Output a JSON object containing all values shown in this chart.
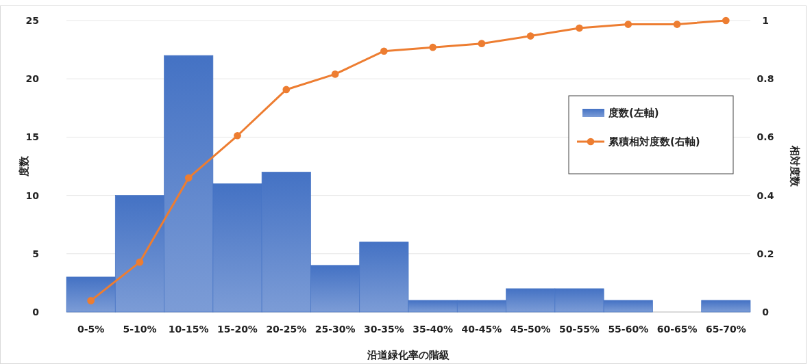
{
  "chart_data": {
    "type": "bar",
    "xlabel": "沿道緑化率の階級",
    "ylabel": "度数",
    "y2label": "相対度数",
    "categories": [
      "0-5%",
      "5-10%",
      "10-15%",
      "15-20%",
      "20-25%",
      "25-30%",
      "30-35%",
      "35-40%",
      "40-45%",
      "45-50%",
      "50-55%",
      "55-60%",
      "60-65%",
      "65-70%"
    ],
    "series": [
      {
        "name": "度数(左軸)",
        "color": "#4472c4",
        "values": [
          3,
          10,
          22,
          11,
          12,
          4,
          6,
          1,
          1,
          2,
          2,
          1,
          0,
          1
        ]
      },
      {
        "name": "累積相対度数(右軸)",
        "type": "line",
        "axis": "y2",
        "color": "#ed7d31",
        "values": [
          0.039,
          0.171,
          0.46,
          0.605,
          0.763,
          0.816,
          0.895,
          0.908,
          0.921,
          0.947,
          0.974,
          0.987,
          0.987,
          1
        ]
      }
    ],
    "ylim": [
      0,
      25
    ],
    "yticks": [
      0,
      5,
      10,
      15,
      20,
      25
    ],
    "y2lim": [
      0,
      1
    ],
    "y2ticks": [
      0,
      0.2,
      0.4,
      0.6,
      0.8,
      1
    ],
    "grid": "y",
    "legend": "right",
    "marker": "circle",
    "line_style": "solid"
  }
}
